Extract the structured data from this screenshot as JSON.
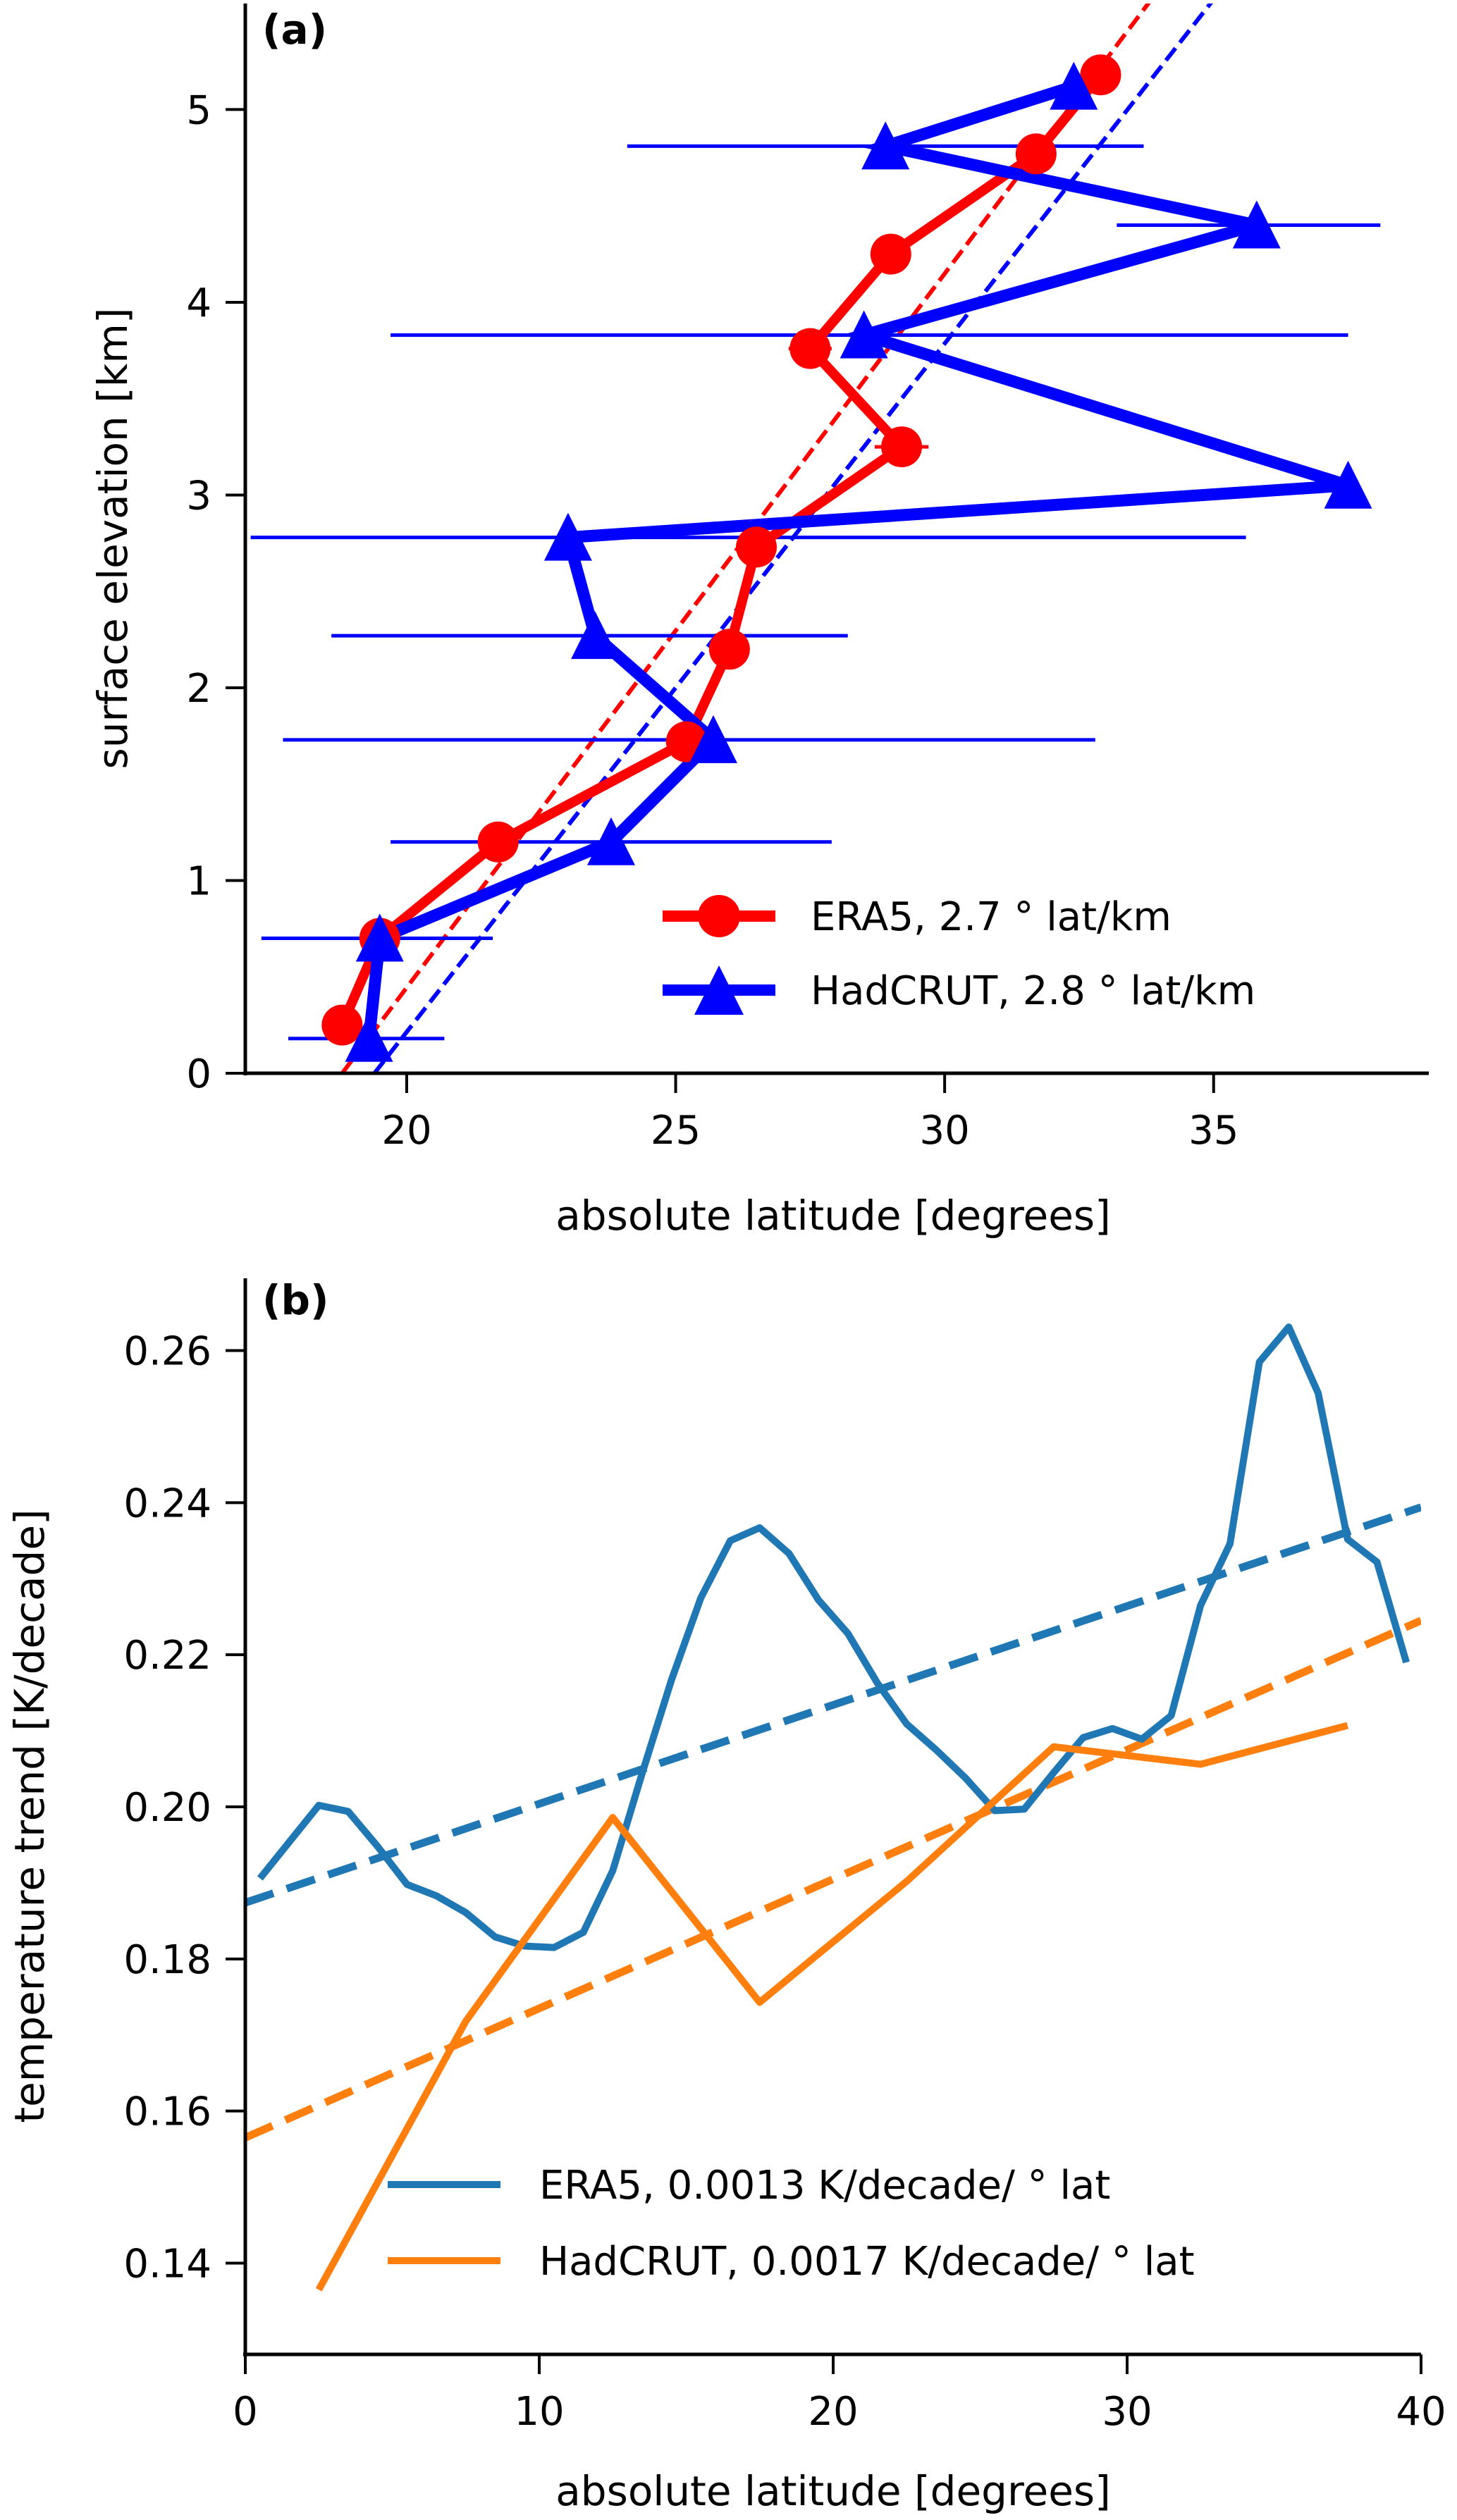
{
  "chart_data": [
    {
      "panel": "(a)",
      "type": "line",
      "xlabel": "absolute latitude [degrees]",
      "ylabel": "surface elevation [km]",
      "xlim": [
        17,
        39
      ],
      "ylim": [
        0,
        5.55
      ],
      "xticks": [
        20,
        25,
        30,
        35
      ],
      "yticks": [
        0,
        1,
        2,
        3,
        4,
        5
      ],
      "xtick_labels": [
        "20",
        "25",
        "30",
        "35"
      ],
      "ytick_labels": [
        "0",
        "1",
        "2",
        "3",
        "4",
        "5"
      ],
      "grid": false,
      "legend_position": "lower-right",
      "series": [
        {
          "name": "ERA5, 2.7$^\\circ$ lat/km",
          "label": "ERA5, 2.7 ° lat/km",
          "color": "#ff0000",
          "marker": "circle",
          "x": [
            18.8,
            19.5,
            21.7,
            25.2,
            26.0,
            26.5,
            29.2,
            27.5,
            29.0,
            31.7,
            32.9
          ],
          "y": [
            0.25,
            0.7,
            1.2,
            1.72,
            2.2,
            2.73,
            3.25,
            3.76,
            4.25,
            4.77,
            5.18
          ],
          "xerr": [
            0.1,
            0.1,
            0.1,
            0.1,
            0.1,
            0.1,
            0.5,
            0.4,
            0.1,
            0.1,
            0.1
          ],
          "fit": {
            "slope_deg_per_km": 2.7,
            "intercept_deg": 18.8
          }
        },
        {
          "name": "HadCRUT, 2.8$^\\circ$ lat/km",
          "label": "HadCRUT, 2.8 ° lat/km",
          "color": "#0000ff",
          "marker": "triangle",
          "x": [
            19.3,
            19.5,
            23.8,
            25.7,
            23.5,
            23.0,
            37.5,
            28.5,
            35.8,
            28.9,
            32.4
          ],
          "y": [
            0.18,
            0.7,
            1.2,
            1.73,
            2.27,
            2.78,
            3.05,
            3.83,
            4.4,
            4.81,
            5.12
          ],
          "xerr_low": [
            17.8,
            17.3,
            19.7,
            17.7,
            18.6,
            17.1,
            37.5,
            19.7,
            33.2,
            24.1,
            32.4
          ],
          "xerr_high": [
            20.7,
            21.6,
            27.9,
            32.8,
            28.2,
            35.6,
            37.5,
            37.5,
            38.1,
            33.7,
            32.4
          ],
          "fit": {
            "slope_deg_per_km": 2.8,
            "intercept_deg": 19.4
          }
        }
      ]
    },
    {
      "panel": "(b)",
      "type": "line",
      "xlabel": "absolute latitude [degrees]",
      "ylabel": "temperature trend [K/decade]",
      "xlim": [
        0,
        40
      ],
      "ylim": [
        0.128,
        0.2695
      ],
      "xticks": [
        0,
        10,
        20,
        30,
        40
      ],
      "yticks": [
        0.14,
        0.16,
        0.18,
        0.2,
        0.22,
        0.24,
        0.26
      ],
      "xtick_labels": [
        "0",
        "10",
        "20",
        "30",
        "40"
      ],
      "ytick_labels": [
        "0.14",
        "0.16",
        "0.18",
        "0.20",
        "0.22",
        "0.24",
        "0.26"
      ],
      "grid": false,
      "legend_position": "lower-right",
      "series": [
        {
          "name": "ERA5, 0.0013 K/decade/$^\\circ$lat",
          "label": "ERA5, 0.0013 K/decade/ ° lat",
          "color": "#1f77b4",
          "x": [
            0.5,
            2.5,
            3.5,
            4.5,
            5.5,
            6.5,
            7.5,
            8.5,
            9.5,
            10.5,
            11.5,
            12.5,
            13.5,
            14.5,
            15.5,
            16.5,
            17.5,
            18.5,
            19.5,
            20.5,
            21.5,
            22.5,
            23.5,
            24.5,
            25.5,
            26.5,
            27.5,
            28.5,
            29.5,
            30.5,
            31.5,
            32.5,
            33.5,
            34.5,
            35.5,
            36.5,
            37.5,
            38.5,
            39.5
          ],
          "y": [
            0.1906,
            0.2002,
            0.1994,
            0.1948,
            0.1898,
            0.1883,
            0.1861,
            0.1829,
            0.1817,
            0.1815,
            0.1835,
            0.1916,
            0.2044,
            0.2167,
            0.2275,
            0.235,
            0.2367,
            0.2333,
            0.2272,
            0.2228,
            0.2163,
            0.2109,
            0.2075,
            0.2038,
            0.1995,
            0.1997,
            0.2045,
            0.2091,
            0.2103,
            0.2089,
            0.212,
            0.2265,
            0.2346,
            0.2585,
            0.2631,
            0.2544,
            0.2352,
            0.2322,
            0.219
          ],
          "fit": {
            "slope": 0.0013,
            "intercept": 0.1874
          }
        },
        {
          "name": "HadCRUT, 0.0017 K/decade/$^\\circ$lat",
          "label": "HadCRUT, 0.0017 K/decade/ ° lat",
          "color": "#ff7f0e",
          "x": [
            2.5,
            7.5,
            12.5,
            17.5,
            22.5,
            27.5,
            32.5,
            37.5
          ],
          "y": [
            0.1365,
            0.1718,
            0.1986,
            0.1743,
            0.1902,
            0.2079,
            0.2056,
            0.2107
          ],
          "fit": {
            "slope": 0.0017,
            "intercept": 0.1565
          }
        }
      ]
    }
  ]
}
